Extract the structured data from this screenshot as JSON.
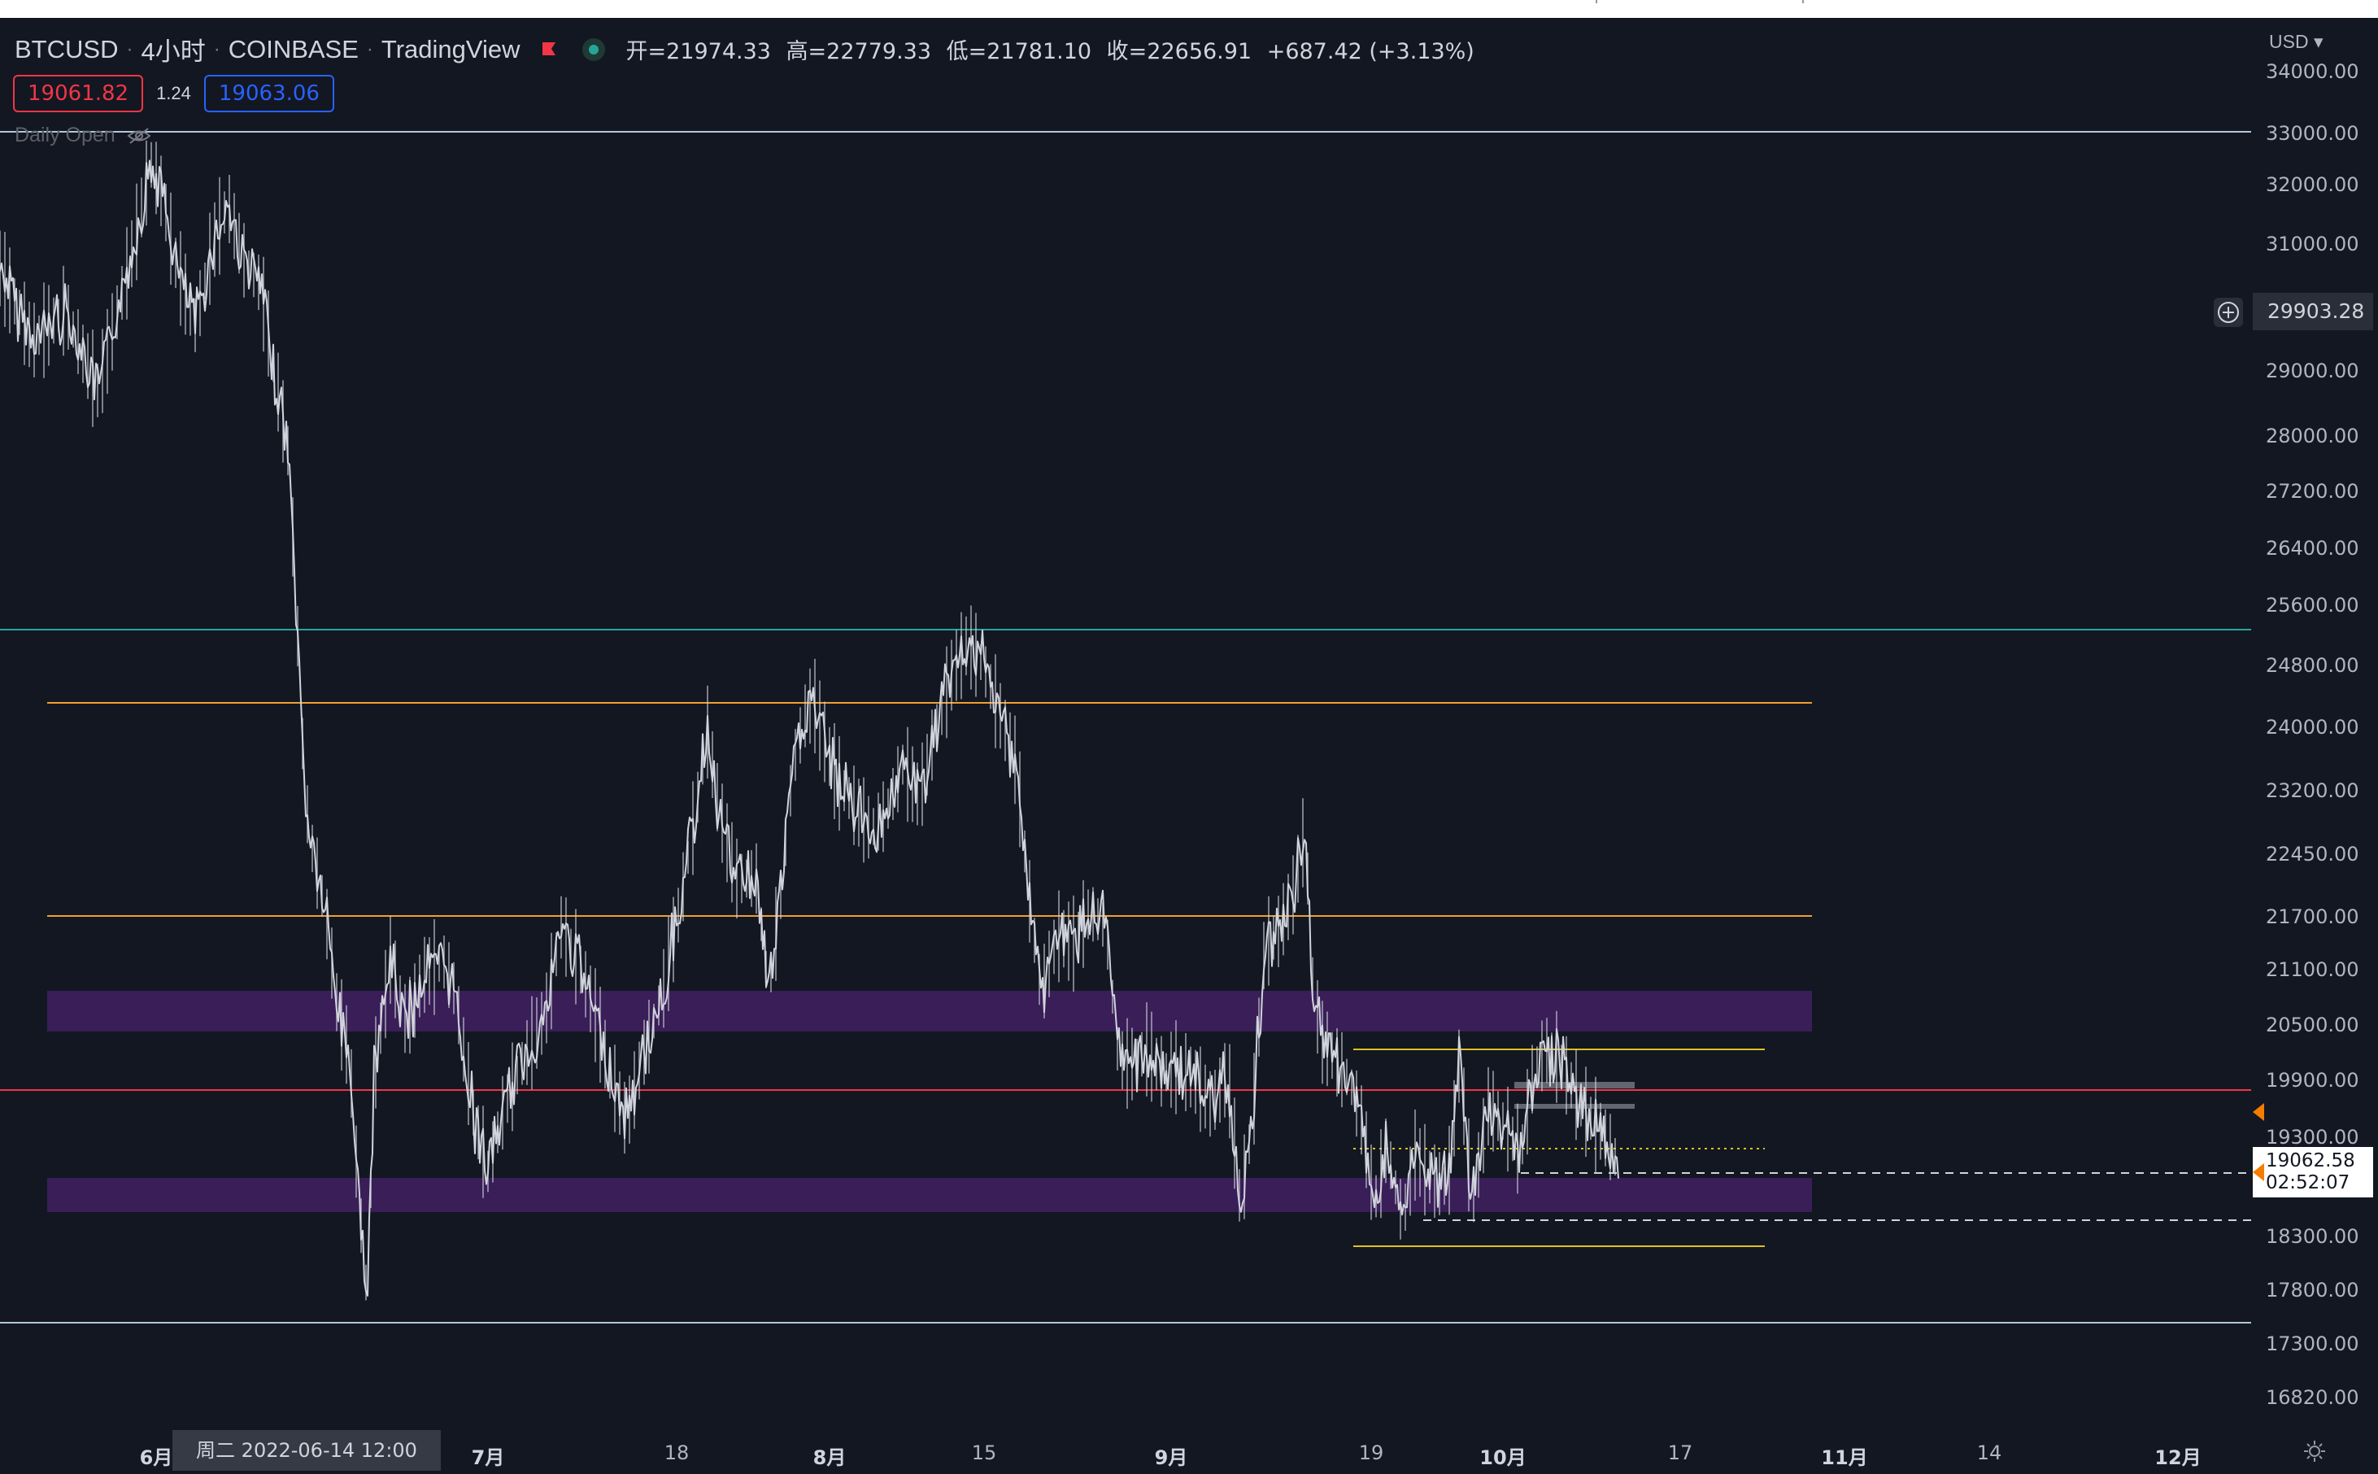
{
  "legend": {
    "symbol": "BTCUSD",
    "interval": "4小时",
    "exchange": "COINBASE",
    "provider": "TradingView",
    "open": "开=21974.33",
    "high": "高=22779.33",
    "low": "低=21781.10",
    "close": "收=22656.91",
    "change": "+687.42 (+3.13%)"
  },
  "trade": {
    "sell_price": "19061.82",
    "spread": "1.24",
    "buy_price": "19063.06"
  },
  "indicator": {
    "name": "Daily Open"
  },
  "price_axis": {
    "currency": "USD",
    "labels": [
      "34000.00",
      "33000.00",
      "32000.00",
      "31000.00",
      "29000.00",
      "28000.00",
      "27200.00",
      "26400.00",
      "25600.00",
      "24800.00",
      "24000.00",
      "23200.00",
      "22450.00",
      "21700.00",
      "21100.00",
      "20500.00",
      "19900.00",
      "19300.00",
      "18300.00",
      "17800.00",
      "17300.00",
      "16820.00"
    ],
    "crosshair_price": "29903.28",
    "current_price": "19062.58",
    "countdown": "02:52:07"
  },
  "time_axis": {
    "labels": [
      {
        "text": "6月",
        "bold": true
      },
      {
        "text": "7月",
        "bold": true
      },
      {
        "text": "18",
        "bold": false
      },
      {
        "text": "8月",
        "bold": true
      },
      {
        "text": "15",
        "bold": false
      },
      {
        "text": "9月",
        "bold": true
      },
      {
        "text": "19",
        "bold": false
      },
      {
        "text": "10月",
        "bold": true
      },
      {
        "text": "17",
        "bold": false
      },
      {
        "text": "11月",
        "bold": true
      },
      {
        "text": "14",
        "bold": false
      },
      {
        "text": "12月",
        "bold": true
      }
    ],
    "crosshair_time": "周二 2022-06-14   12:00"
  },
  "colors": {
    "background": "#131722",
    "candles": "#d1d4dc",
    "resistance": "#f0a030",
    "support_zone": "#3b1f5c",
    "current_line": "#f23645",
    "teal_line": "#26a69a",
    "range_line": "#e0c020"
  }
}
